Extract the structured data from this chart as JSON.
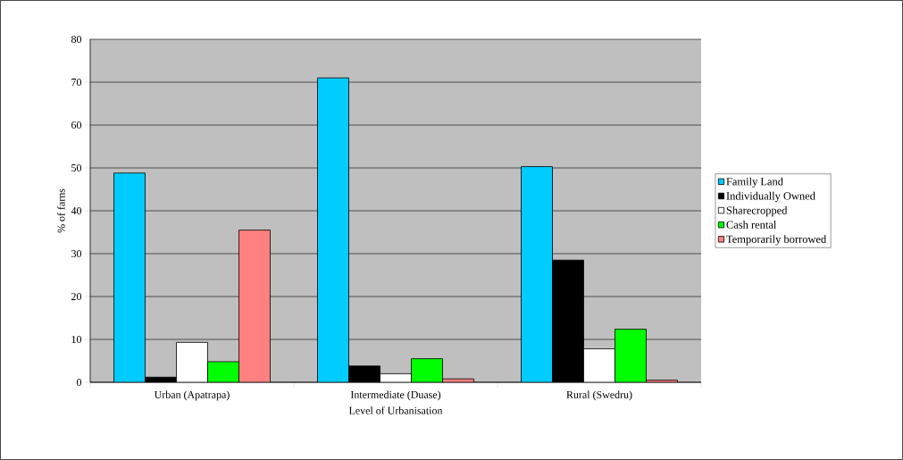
{
  "chart_data": {
    "type": "bar",
    "xlabel": "Level of Urbanisation",
    "ylabel": "% of farns",
    "categories": [
      "Urban (Apatrapa)",
      "Intermediate (Duase)",
      "Rural (Swedru)"
    ],
    "series": [
      {
        "name": "Family Land",
        "color": "#00ccff",
        "values": [
          48.8,
          71.0,
          50.3
        ]
      },
      {
        "name": "Individually Owned",
        "color": "#000000",
        "values": [
          1.2,
          3.8,
          28.5
        ]
      },
      {
        "name": "Sharecropped",
        "color": "#ffffff",
        "values": [
          9.3,
          2.0,
          7.8
        ]
      },
      {
        "name": "Cash rental",
        "color": "#00ff00",
        "values": [
          4.8,
          5.5,
          12.4
        ]
      },
      {
        "name": "Temporarily borrowed",
        "color": "#ff8080",
        "values": [
          35.5,
          0.8,
          0.5
        ]
      }
    ],
    "ylim": [
      0,
      80
    ],
    "yticks": [
      0,
      10,
      20,
      30,
      40,
      50,
      60,
      70,
      80
    ],
    "grid": "y",
    "legend": "right"
  }
}
